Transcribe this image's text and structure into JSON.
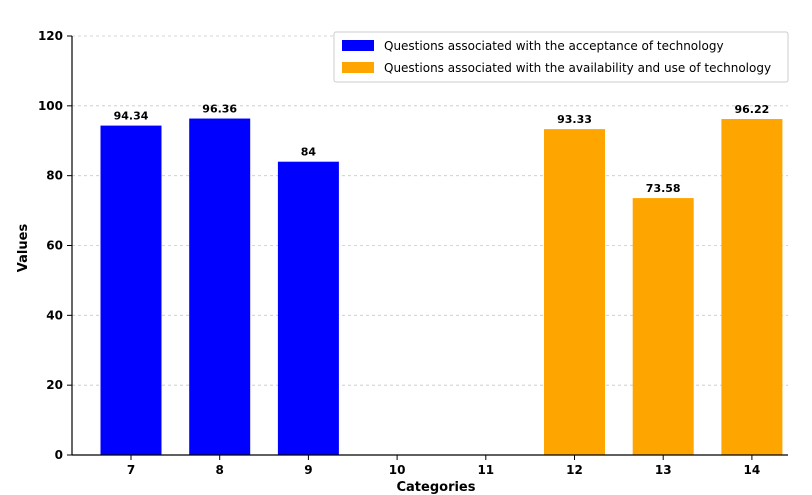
{
  "chart_data": {
    "type": "bar",
    "xlabel": "Categories",
    "ylabel": "Values",
    "ylim": [
      0,
      120
    ],
    "yticks": [
      0,
      20,
      40,
      60,
      80,
      100,
      120
    ],
    "grid": "horizontal dashed",
    "legend_position": "top-right",
    "categories": [
      "7",
      "8",
      "9",
      "10",
      "11",
      "12",
      "13",
      "14"
    ],
    "series": [
      {
        "name": "Questions associated with the acceptance of technology",
        "color": "#0000ff",
        "values": [
          94.34,
          96.36,
          84,
          null,
          null,
          null,
          null,
          null
        ],
        "labels": [
          "94.34",
          "96.36",
          "84",
          "",
          "",
          "",
          "",
          ""
        ]
      },
      {
        "name": "Questions associated with the availability and use of technology",
        "color": "#ffa500",
        "values": [
          null,
          null,
          null,
          null,
          null,
          93.33,
          73.58,
          96.22
        ],
        "labels": [
          "",
          "",
          "",
          "",
          "",
          "93.33",
          "73.58",
          "96.22"
        ]
      }
    ]
  }
}
